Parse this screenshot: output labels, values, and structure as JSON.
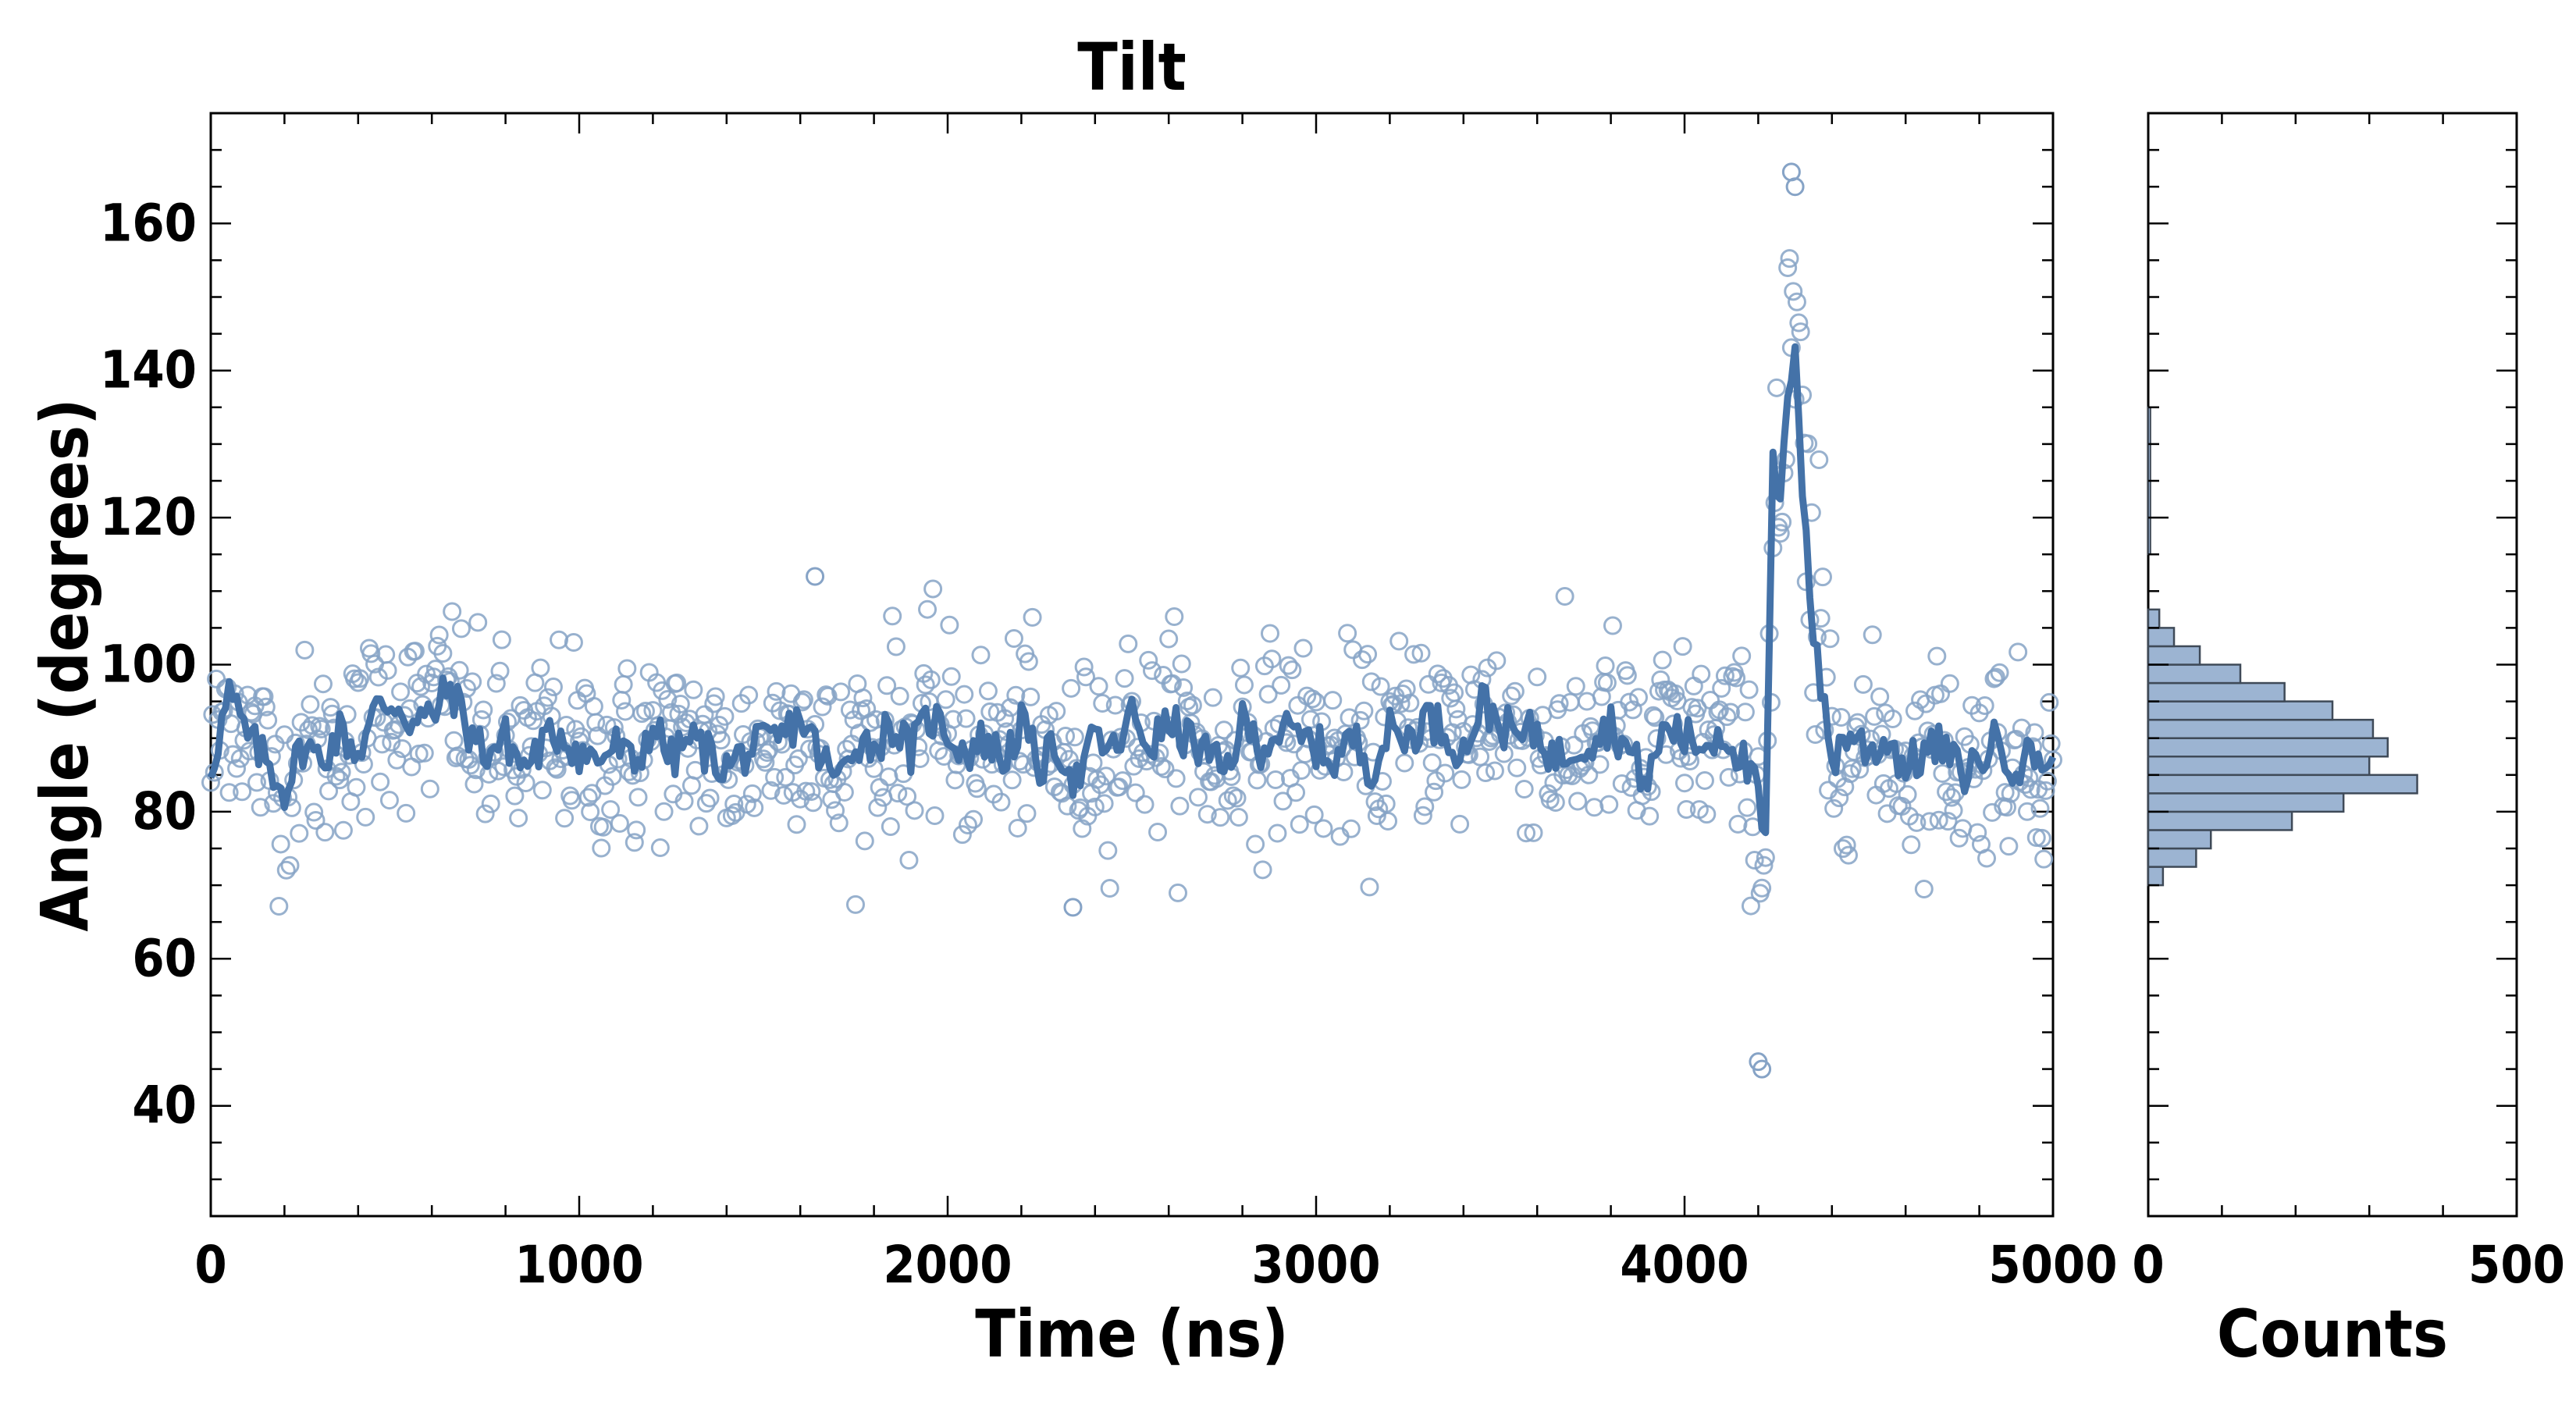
{
  "colors": {
    "series": "#4472a8",
    "marker_edge": "#86a3c6",
    "hist_fill": "#9cb4d2",
    "hist_edge": "#3f4a58",
    "axes": "#000000"
  },
  "chart_data": [
    {
      "type": "scatter",
      "title": "Tilt",
      "xlabel": "Time (ns)",
      "ylabel": "Angle (degrees)",
      "xlim": [
        0,
        5000
      ],
      "ylim": [
        25,
        175
      ],
      "xticks": [
        "0",
        "1000",
        "2000",
        "3000",
        "4000",
        "5000"
      ],
      "yticks": [
        "40",
        "60",
        "80",
        "100",
        "120",
        "140",
        "160"
      ],
      "grid": false,
      "series": [
        {
          "style": "markers",
          "note_generation": "noisy samples around smoothed trace, ~5 ns spacing",
          "sample_spacing": 5
        },
        {
          "style": "line",
          "x": [
            0,
            50,
            100,
            150,
            200,
            250,
            300,
            350,
            400,
            450,
            500,
            550,
            600,
            650,
            700,
            750,
            800,
            850,
            900,
            950,
            1000,
            1050,
            1100,
            1150,
            1200,
            1250,
            1300,
            1350,
            1400,
            1450,
            1500,
            1550,
            1600,
            1650,
            1700,
            1750,
            1800,
            1850,
            1900,
            1950,
            2000,
            2050,
            2100,
            2150,
            2200,
            2250,
            2300,
            2350,
            2400,
            2450,
            2500,
            2550,
            2600,
            2650,
            2700,
            2750,
            2800,
            2850,
            2900,
            2950,
            3000,
            3050,
            3100,
            3150,
            3200,
            3250,
            3300,
            3350,
            3400,
            3450,
            3500,
            3550,
            3600,
            3650,
            3700,
            3750,
            3800,
            3850,
            3900,
            3950,
            4000,
            4050,
            4100,
            4150,
            4200,
            4220,
            4240,
            4260,
            4280,
            4300,
            4320,
            4340,
            4360,
            4380,
            4400,
            4450,
            4500,
            4550,
            4600,
            4650,
            4700,
            4750,
            4800,
            4850,
            4900,
            4950,
            5000
          ],
          "y": [
            86,
            96,
            90,
            87,
            83,
            89,
            87,
            91,
            88,
            94,
            95,
            92,
            93,
            97,
            91,
            88,
            90,
            86,
            89,
            91,
            88,
            87,
            89,
            86,
            92,
            87,
            90,
            88,
            86,
            88,
            89,
            90,
            93,
            88,
            84,
            90,
            89,
            92,
            88,
            93,
            91,
            88,
            90,
            87,
            92,
            86,
            89,
            84,
            90,
            88,
            93,
            89,
            92,
            90,
            88,
            85,
            92,
            89,
            91,
            90,
            89,
            87,
            90,
            86,
            91,
            90,
            93,
            91,
            88,
            95,
            92,
            90,
            91,
            87,
            89,
            90,
            92,
            88,
            84,
            92,
            90,
            89,
            91,
            88,
            82,
            75,
            128,
            120,
            136,
            145,
            125,
            110,
            100,
            94,
            87,
            91,
            88,
            90,
            86,
            88,
            89,
            85,
            87,
            90,
            86,
            88,
            86
          ]
        }
      ]
    },
    {
      "type": "bar",
      "orientation": "horizontal",
      "xlabel": "Counts",
      "xlim": [
        0,
        500
      ],
      "xticks": [
        "0",
        "500"
      ],
      "ylim": [
        25,
        175
      ],
      "bin_edges": [
        70,
        72.5,
        75,
        77.5,
        80,
        82.5,
        85,
        87.5,
        90,
        92.5,
        95,
        97.5,
        100,
        102.5,
        105,
        107.5
      ],
      "counts": [
        20,
        65,
        85,
        195,
        265,
        365,
        300,
        325,
        305,
        250,
        185,
        125,
        70,
        35,
        15
      ],
      "sparse_bins": [
        {
          "y": [
            115,
            135
          ],
          "count": 3
        }
      ]
    }
  ]
}
